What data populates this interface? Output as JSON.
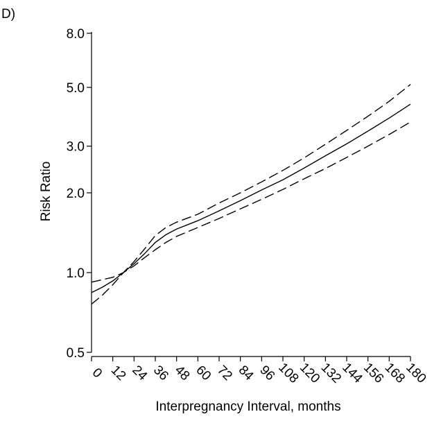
{
  "chart_data": {
    "type": "line",
    "panel_label": "D)",
    "xlabel": "Interpregnancy Interval, months",
    "ylabel": "Risk Ratio",
    "xlim": [
      0,
      180
    ],
    "ylim": [
      0.5,
      8.0
    ],
    "y_scale": "log",
    "x_ticks": [
      0,
      12,
      24,
      36,
      48,
      60,
      72,
      84,
      96,
      108,
      120,
      132,
      144,
      156,
      168,
      180
    ],
    "y_ticks": [
      0.5,
      1.0,
      2.0,
      3.0,
      5.0,
      8.0
    ],
    "y_tick_labels": [
      "0.5",
      "1.0",
      "2.0",
      "3.0",
      "5.0",
      "8.0"
    ],
    "grid": false,
    "series": [
      {
        "style": "solid",
        "x": [
          0,
          6,
          12,
          18,
          24,
          30,
          36,
          42,
          48,
          60,
          72,
          84,
          96,
          108,
          120,
          132,
          144,
          156,
          168,
          180
        ],
        "y": [
          0.84,
          0.88,
          0.93,
          1.0,
          1.08,
          1.18,
          1.3,
          1.39,
          1.46,
          1.57,
          1.71,
          1.87,
          2.05,
          2.24,
          2.48,
          2.76,
          3.06,
          3.42,
          3.83,
          4.32
        ]
      },
      {
        "style": "dashed",
        "x": [
          0,
          6,
          12,
          18,
          24,
          30,
          36,
          42,
          48,
          60,
          72,
          84,
          96,
          108,
          120,
          132,
          144,
          156,
          168,
          180
        ],
        "y": [
          0.76,
          0.82,
          0.9,
          1.0,
          1.1,
          1.23,
          1.38,
          1.48,
          1.55,
          1.66,
          1.83,
          2.0,
          2.2,
          2.43,
          2.71,
          3.05,
          3.44,
          3.89,
          4.43,
          5.13
        ]
      },
      {
        "style": "dashed",
        "x": [
          0,
          6,
          12,
          18,
          24,
          30,
          36,
          42,
          48,
          60,
          72,
          84,
          96,
          108,
          120,
          132,
          144,
          156,
          168,
          180
        ],
        "y": [
          0.92,
          0.94,
          0.96,
          1.0,
          1.06,
          1.14,
          1.22,
          1.3,
          1.37,
          1.48,
          1.6,
          1.74,
          1.89,
          2.06,
          2.26,
          2.47,
          2.72,
          3.0,
          3.32,
          3.7
        ]
      }
    ]
  }
}
